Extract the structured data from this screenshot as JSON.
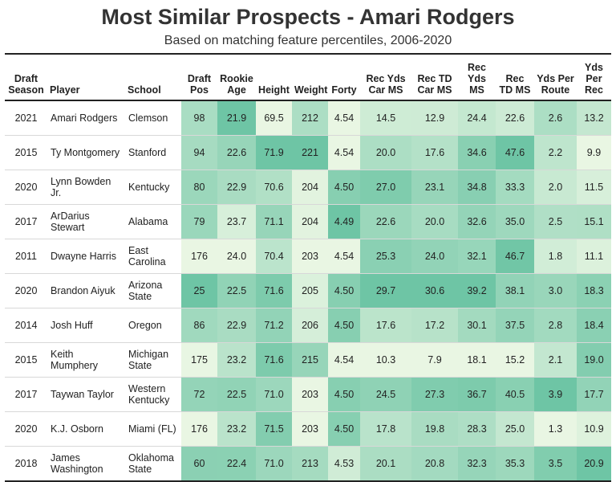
{
  "title": "Most Similar Prospects - Amari Rodgers",
  "subtitle": "Based on matching feature percentiles, 2006-2020",
  "colors": {
    "low": "#f5fbe9",
    "high": "#5fbf9d"
  },
  "chart_data": {
    "type": "table",
    "columns": [
      "Draft Season",
      "Player",
      "School",
      "Draft Pos",
      "Rookie Age",
      "Height",
      "Weight",
      "Forty",
      "Rec Yds Car MS",
      "Rec TD Car MS",
      "Rec Yds MS",
      "Rec TD MS",
      "Yds Per Route",
      "Yds Per Rec"
    ],
    "rows": [
      [
        "2021",
        "Amari Rodgers",
        "Clemson",
        "98",
        "21.9",
        "69.5",
        "212",
        "4.54",
        "14.5",
        "12.9",
        "24.4",
        "22.6",
        "2.6",
        "13.2"
      ],
      [
        "2015",
        "Ty Montgomery",
        "Stanford",
        "94",
        "22.6",
        "71.9",
        "221",
        "4.54",
        "20.0",
        "17.6",
        "34.6",
        "47.6",
        "2.2",
        "9.9"
      ],
      [
        "2020",
        "Lynn Bowden Jr.",
        "Kentucky",
        "80",
        "22.9",
        "70.6",
        "204",
        "4.50",
        "27.0",
        "23.1",
        "34.8",
        "33.3",
        "2.0",
        "11.5"
      ],
      [
        "2017",
        "ArDarius Stewart",
        "Alabama",
        "79",
        "23.7",
        "71.1",
        "204",
        "4.49",
        "22.6",
        "20.0",
        "32.6",
        "35.0",
        "2.5",
        "15.1"
      ],
      [
        "2011",
        "Dwayne Harris",
        "East Carolina",
        "176",
        "24.0",
        "70.4",
        "203",
        "4.54",
        "25.3",
        "24.0",
        "32.1",
        "46.7",
        "1.8",
        "11.1"
      ],
      [
        "2020",
        "Brandon Aiyuk",
        "Arizona State",
        "25",
        "22.5",
        "71.6",
        "205",
        "4.50",
        "29.7",
        "30.6",
        "39.2",
        "38.1",
        "3.0",
        "18.3"
      ],
      [
        "2014",
        "Josh Huff",
        "Oregon",
        "86",
        "22.9",
        "71.2",
        "206",
        "4.50",
        "17.6",
        "17.2",
        "30.1",
        "37.5",
        "2.8",
        "18.4"
      ],
      [
        "2015",
        "Keith Mumphery",
        "Michigan State",
        "175",
        "23.2",
        "71.6",
        "215",
        "4.54",
        "10.3",
        "7.9",
        "18.1",
        "15.2",
        "2.1",
        "19.0"
      ],
      [
        "2017",
        "Taywan Taylor",
        "Western Kentucky",
        "72",
        "22.5",
        "71.0",
        "203",
        "4.50",
        "24.5",
        "27.3",
        "36.7",
        "40.5",
        "3.9",
        "17.7"
      ],
      [
        "2020",
        "K.J. Osborn",
        "Miami (FL)",
        "176",
        "23.2",
        "71.5",
        "203",
        "4.50",
        "17.8",
        "19.8",
        "28.3",
        "25.0",
        "1.3",
        "10.9"
      ],
      [
        "2018",
        "James Washington",
        "Oklahoma State",
        "60",
        "22.4",
        "71.0",
        "213",
        "4.53",
        "20.1",
        "20.8",
        "32.3",
        "35.3",
        "3.5",
        "20.9"
      ]
    ]
  }
}
